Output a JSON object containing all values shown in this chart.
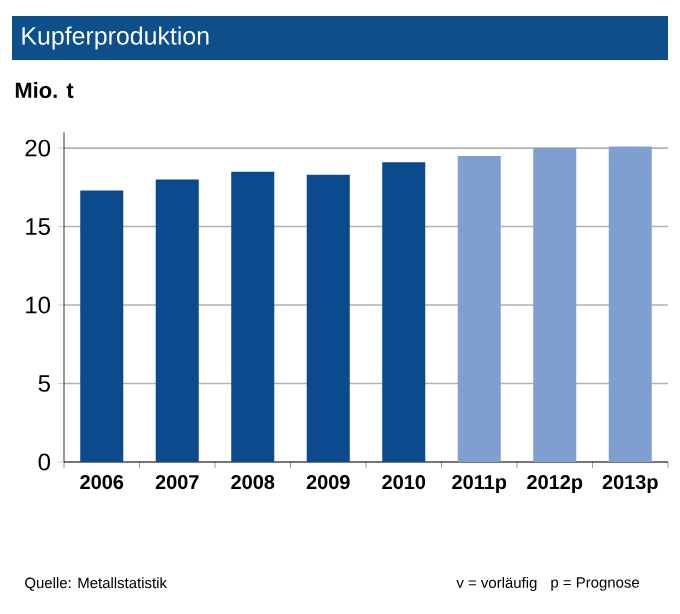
{
  "chart_data": {
    "type": "bar",
    "title": "Kupferproduktion",
    "ylabel": "Mio. t",
    "categories": [
      "2006",
      "2007",
      "2008",
      "2009",
      "2010",
      "2011p",
      "2012p",
      "2013p"
    ],
    "values": [
      17.3,
      18.0,
      18.5,
      18.3,
      19.1,
      19.5,
      20.0,
      20.1
    ],
    "colors": [
      "#0b4a8c",
      "#0b4a8c",
      "#0b4a8c",
      "#0b4a8c",
      "#0b4a8c",
      "#7f9fd0",
      "#7f9fd0",
      "#7f9fd0"
    ],
    "ylim": [
      0,
      21
    ],
    "yticks": [
      0,
      5,
      10,
      15,
      20
    ],
    "grid": "y",
    "annotations": [
      "Quelle: Metallstatistik",
      "v = vorläufig",
      "p = Prognose"
    ]
  }
}
